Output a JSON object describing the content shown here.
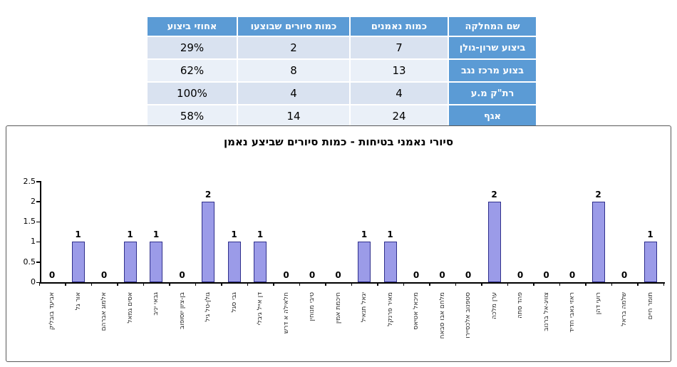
{
  "table": {
    "headers": [
      "שם המחלקה",
      "כמות נאמנים",
      "כמות סיורים שבוצעו",
      "אחוזי ביצוע"
    ],
    "rows": [
      {
        "department": "ביצוע שרון-גולן",
        "trustees": "7",
        "tours": "2",
        "percent": "29%"
      },
      {
        "department": "בצוע מרכז נגב",
        "trustees": "13",
        "tours": "8",
        "percent": "62%"
      },
      {
        "department": "רת\"ק מ.ע",
        "trustees": "4",
        "tours": "4",
        "percent": "100%"
      },
      {
        "department": "אגף",
        "trustees": "24",
        "tours": "14",
        "percent": "58%"
      }
    ]
  },
  "chart_data": {
    "type": "bar",
    "title": "סיורי נאמני בטיחות - כמות סיורים שביצע נאמן",
    "categories": [
      "אביעד בובליק",
      "אור גל",
      "אלמוג אברהם",
      "אסים גמאל",
      "גבאי יניב",
      "בן-ציון יוסופוב",
      "גולן-טל גיל",
      "גבי סגל",
      "דן אייל גיבלי",
      "חלאילה א דרש",
      "טיבי מנוחין",
      "חיכמת אמין",
      "יגאל תנאיל",
      "מאיר פרנקל",
      "מיכאל אטיאס",
      "מלחם אבו סבאח",
      "סטפנוב אלכסיירו",
      "ערן מלכה",
      "פהד סתה",
      "צוויג-אל ברנוב",
      "ראזי גאבי חדיד",
      "רועי דהן",
      "שלמה בראל",
      "תומר חיים"
    ],
    "values": [
      0,
      1,
      0,
      1,
      1,
      0,
      2,
      1,
      1,
      0,
      0,
      0,
      1,
      1,
      0,
      0,
      0,
      2,
      0,
      0,
      0,
      2,
      0,
      1
    ],
    "xlabel": "",
    "ylabel": "",
    "ylim": [
      0,
      2.5
    ],
    "ytick_labels": [
      "0",
      "0.5",
      "1",
      "1.5",
      "2",
      "2.5"
    ],
    "grid": false,
    "legend": "none",
    "value_labels": true,
    "bar_color": "#9B9BE8",
    "bar_border_color": "#30308C",
    "accent_blue": "#5B9BD5"
  }
}
